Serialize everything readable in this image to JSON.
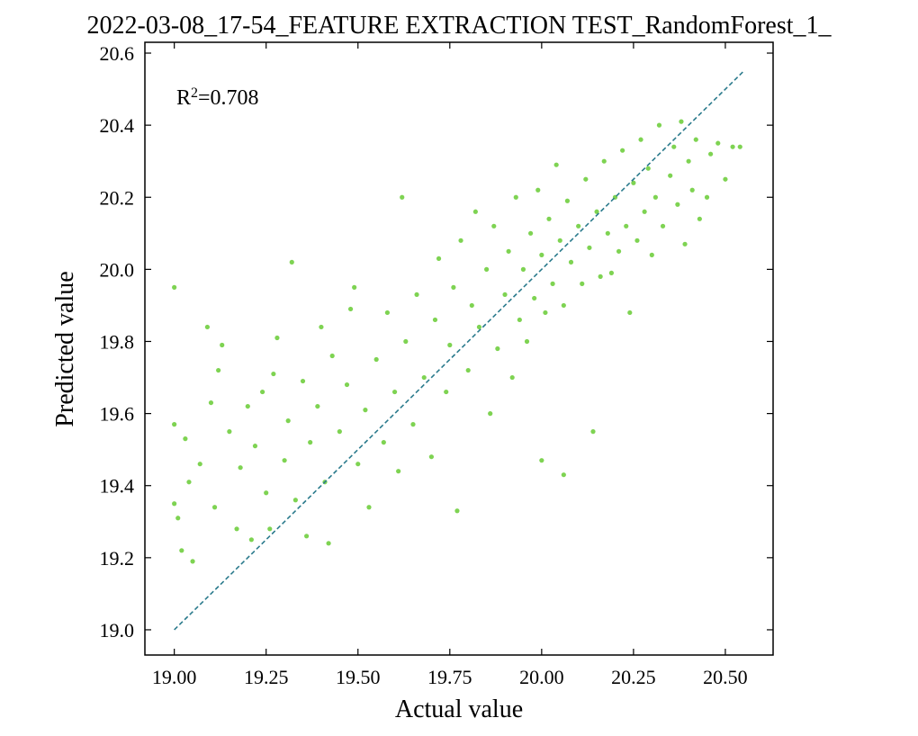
{
  "chart_data": {
    "type": "scatter",
    "title": "2022-03-08_17-54_FEATURE EXTRACTION TEST_RandomForest_1_",
    "xlabel": "Actual value",
    "ylabel": "Predicted value",
    "xlim": [
      18.92,
      20.63
    ],
    "ylim": [
      18.93,
      20.63
    ],
    "xticks": [
      19.0,
      19.25,
      19.5,
      19.75,
      20.0,
      20.25,
      20.5
    ],
    "xtick_labels": [
      "19.00",
      "19.25",
      "19.50",
      "19.75",
      "20.00",
      "20.25",
      "20.50"
    ],
    "yticks": [
      19.0,
      19.2,
      19.4,
      19.6,
      19.8,
      20.0,
      20.2,
      20.4,
      20.6
    ],
    "ytick_labels": [
      "19.0",
      "19.2",
      "19.4",
      "19.6",
      "19.8",
      "20.0",
      "20.2",
      "20.4",
      "20.6"
    ],
    "annotation": {
      "prefix": "R",
      "superscript": "2",
      "suffix": "=0.708"
    },
    "grid": false,
    "ticks_direction": "in",
    "point_color": "#7ed352",
    "reference_line": {
      "x": [
        19.0,
        20.55
      ],
      "y": [
        19.0,
        20.55
      ],
      "style": "dashed",
      "color": "#2a7a8c"
    },
    "series": [
      {
        "points": [
          [
            19.0,
            19.95
          ],
          [
            19.0,
            19.57
          ],
          [
            19.0,
            19.35
          ],
          [
            19.01,
            19.31
          ],
          [
            19.02,
            19.22
          ],
          [
            19.03,
            19.53
          ],
          [
            19.05,
            19.19
          ],
          [
            19.04,
            19.41
          ],
          [
            19.07,
            19.46
          ],
          [
            19.09,
            19.84
          ],
          [
            19.1,
            19.63
          ],
          [
            19.12,
            19.72
          ],
          [
            19.13,
            19.79
          ],
          [
            19.11,
            19.34
          ],
          [
            19.15,
            19.55
          ],
          [
            19.17,
            19.28
          ],
          [
            19.18,
            19.45
          ],
          [
            19.2,
            19.62
          ],
          [
            19.21,
            19.25
          ],
          [
            19.22,
            19.51
          ],
          [
            19.24,
            19.66
          ],
          [
            19.25,
            19.38
          ],
          [
            19.27,
            19.71
          ],
          [
            19.28,
            19.81
          ],
          [
            19.26,
            19.28
          ],
          [
            19.3,
            19.47
          ],
          [
            19.32,
            20.02
          ],
          [
            19.31,
            19.58
          ],
          [
            19.33,
            19.36
          ],
          [
            19.35,
            19.69
          ],
          [
            19.36,
            19.26
          ],
          [
            19.37,
            19.52
          ],
          [
            19.39,
            19.62
          ],
          [
            19.4,
            19.84
          ],
          [
            19.41,
            19.41
          ],
          [
            19.43,
            19.76
          ],
          [
            19.42,
            19.24
          ],
          [
            19.45,
            19.55
          ],
          [
            19.47,
            19.68
          ],
          [
            19.48,
            19.89
          ],
          [
            19.5,
            19.46
          ],
          [
            19.49,
            19.95
          ],
          [
            19.52,
            19.61
          ],
          [
            19.53,
            19.34
          ],
          [
            19.55,
            19.75
          ],
          [
            19.57,
            19.52
          ],
          [
            19.58,
            19.88
          ],
          [
            19.6,
            19.66
          ],
          [
            19.62,
            20.2
          ],
          [
            19.61,
            19.44
          ],
          [
            19.63,
            19.8
          ],
          [
            19.65,
            19.57
          ],
          [
            19.66,
            19.93
          ],
          [
            19.68,
            19.7
          ],
          [
            19.7,
            19.48
          ],
          [
            19.71,
            19.86
          ],
          [
            19.72,
            20.03
          ],
          [
            19.74,
            19.66
          ],
          [
            19.75,
            19.79
          ],
          [
            19.76,
            19.95
          ],
          [
            19.77,
            19.33
          ],
          [
            19.78,
            20.08
          ],
          [
            19.8,
            19.72
          ],
          [
            19.81,
            19.9
          ],
          [
            19.82,
            20.16
          ],
          [
            19.83,
            19.84
          ],
          [
            19.85,
            20.0
          ],
          [
            19.86,
            19.6
          ],
          [
            19.87,
            20.12
          ],
          [
            19.88,
            19.78
          ],
          [
            19.9,
            19.93
          ],
          [
            19.91,
            20.05
          ],
          [
            19.92,
            19.7
          ],
          [
            19.93,
            20.2
          ],
          [
            19.94,
            19.86
          ],
          [
            19.95,
            20.0
          ],
          [
            19.96,
            19.8
          ],
          [
            19.97,
            20.1
          ],
          [
            19.98,
            19.92
          ],
          [
            19.99,
            20.22
          ],
          [
            20.0,
            19.47
          ],
          [
            20.0,
            20.04
          ],
          [
            20.01,
            19.88
          ],
          [
            20.02,
            20.14
          ],
          [
            20.03,
            19.96
          ],
          [
            20.04,
            20.29
          ],
          [
            20.05,
            20.08
          ],
          [
            20.06,
            19.43
          ],
          [
            20.06,
            19.9
          ],
          [
            20.07,
            20.19
          ],
          [
            20.08,
            20.02
          ],
          [
            20.1,
            20.12
          ],
          [
            20.11,
            19.96
          ],
          [
            20.12,
            20.25
          ],
          [
            20.13,
            20.06
          ],
          [
            20.14,
            19.55
          ],
          [
            20.15,
            20.16
          ],
          [
            20.16,
            19.98
          ],
          [
            20.17,
            20.3
          ],
          [
            20.18,
            20.1
          ],
          [
            20.19,
            19.99
          ],
          [
            20.2,
            20.2
          ],
          [
            20.21,
            20.05
          ],
          [
            20.22,
            20.33
          ],
          [
            20.23,
            20.12
          ],
          [
            20.24,
            19.88
          ],
          [
            20.25,
            20.24
          ],
          [
            20.26,
            20.08
          ],
          [
            20.27,
            20.36
          ],
          [
            20.28,
            20.16
          ],
          [
            20.29,
            20.28
          ],
          [
            20.3,
            20.04
          ],
          [
            20.31,
            20.2
          ],
          [
            20.32,
            20.4
          ],
          [
            20.33,
            20.12
          ],
          [
            20.35,
            20.26
          ],
          [
            20.36,
            20.34
          ],
          [
            20.37,
            20.18
          ],
          [
            20.38,
            20.41
          ],
          [
            20.39,
            20.07
          ],
          [
            20.4,
            20.3
          ],
          [
            20.41,
            20.22
          ],
          [
            20.42,
            20.36
          ],
          [
            20.43,
            20.14
          ],
          [
            20.45,
            20.2
          ],
          [
            20.46,
            20.32
          ],
          [
            20.48,
            20.35
          ],
          [
            20.5,
            20.25
          ],
          [
            20.52,
            20.34
          ],
          [
            20.54,
            20.34
          ]
        ]
      }
    ]
  }
}
